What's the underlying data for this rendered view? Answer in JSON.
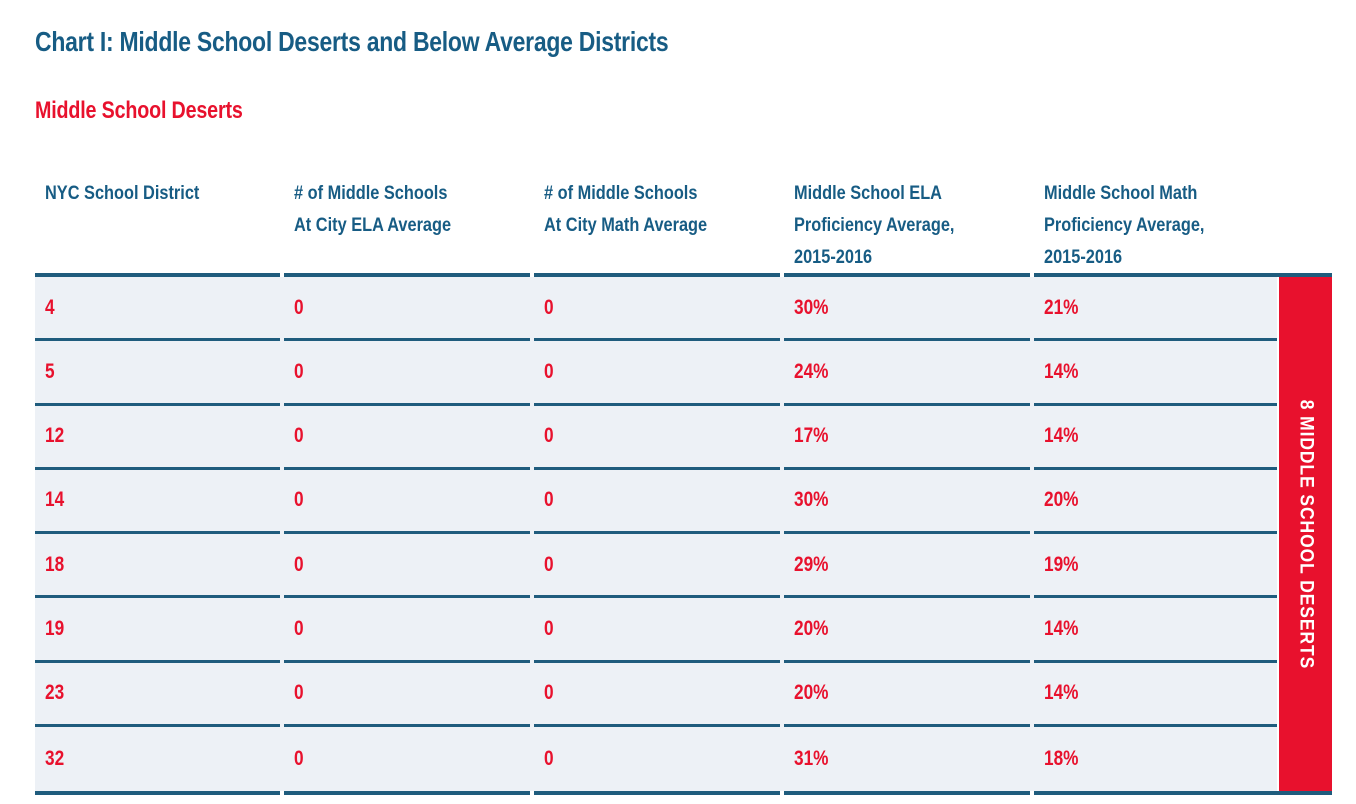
{
  "page": {
    "title": "Chart I: Middle School Deserts and Below Average Districts",
    "section_title": "Middle School Deserts"
  },
  "colors": {
    "blue": "#175c84",
    "red": "#e8112d",
    "row_bg": "#edf1f6",
    "line": "#1f5c7d",
    "banner_bg": "#e8112d",
    "banner_text": "#ffffff"
  },
  "table": {
    "columns": [
      {
        "label": "NYC School District",
        "lines": [
          "NYC School District"
        ]
      },
      {
        "label": "# of Middle Schools At City ELA Average",
        "lines": [
          "# of Middle Schools",
          "At City ELA Average"
        ]
      },
      {
        "label": "# of Middle Schools At City Math Average",
        "lines": [
          "# of Middle Schools",
          "At City Math Average"
        ]
      },
      {
        "label": "Middle School ELA Proficiency Average, 2015-2016",
        "lines": [
          "Middle School ELA",
          "Proficiency Average,",
          "2015-2016"
        ]
      },
      {
        "label": "Middle School Math Proficiency Average, 2015-2016",
        "lines": [
          "Middle School Math",
          "Proficiency Average,",
          "2015-2016"
        ]
      }
    ],
    "rows": [
      {
        "district": "4",
        "ela_count": "0",
        "math_count": "0",
        "ela_prof": "30%",
        "math_prof": "21%"
      },
      {
        "district": "5",
        "ela_count": "0",
        "math_count": "0",
        "ela_prof": "24%",
        "math_prof": "14%"
      },
      {
        "district": "12",
        "ela_count": "0",
        "math_count": "0",
        "ela_prof": "17%",
        "math_prof": "14%"
      },
      {
        "district": "14",
        "ela_count": "0",
        "math_count": "0",
        "ela_prof": "30%",
        "math_prof": "20%"
      },
      {
        "district": "18",
        "ela_count": "0",
        "math_count": "0",
        "ela_prof": "29%",
        "math_prof": "19%"
      },
      {
        "district": "19",
        "ela_count": "0",
        "math_count": "0",
        "ela_prof": "20%",
        "math_prof": "14%"
      },
      {
        "district": "23",
        "ela_count": "0",
        "math_count": "0",
        "ela_prof": "20%",
        "math_prof": "14%"
      },
      {
        "district": "32",
        "ela_count": "0",
        "math_count": "0",
        "ela_prof": "31%",
        "math_prof": "18%"
      }
    ]
  },
  "banner": {
    "label": "8 MIDDLE SCHOOL DESERTS"
  }
}
